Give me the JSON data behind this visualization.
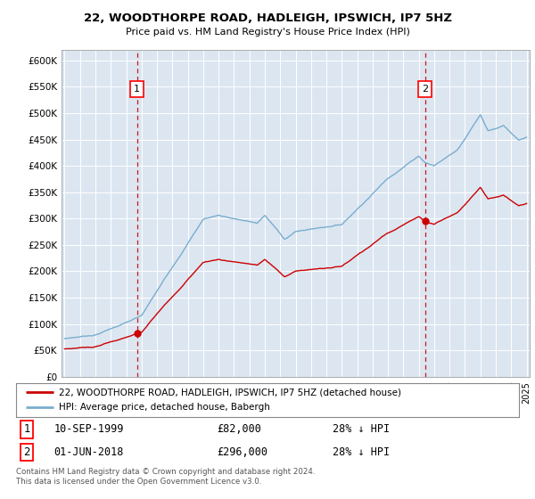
{
  "title": "22, WOODTHORPE ROAD, HADLEIGH, IPSWICH, IP7 5HZ",
  "subtitle": "Price paid vs. HM Land Registry's House Price Index (HPI)",
  "plot_bg_color": "#dce6f1",
  "ylim": [
    0,
    620000
  ],
  "yticks": [
    0,
    50000,
    100000,
    150000,
    200000,
    250000,
    300000,
    350000,
    400000,
    450000,
    500000,
    550000,
    600000
  ],
  "ytick_labels": [
    "£0",
    "£50K",
    "£100K",
    "£150K",
    "£200K",
    "£250K",
    "£300K",
    "£350K",
    "£400K",
    "£450K",
    "£500K",
    "£550K",
    "£600K"
  ],
  "sale1_date_year": 1999.7,
  "sale1_price": 82000,
  "sale2_date_year": 2018.4,
  "sale2_price": 296000,
  "legend_line1": "22, WOODTHORPE ROAD, HADLEIGH, IPSWICH, IP7 5HZ (detached house)",
  "legend_line2": "HPI: Average price, detached house, Babergh",
  "annotation1_label": "1",
  "annotation1_date": "10-SEP-1999",
  "annotation1_price": "£82,000",
  "annotation1_hpi": "28% ↓ HPI",
  "annotation2_label": "2",
  "annotation2_date": "01-JUN-2018",
  "annotation2_price": "£296,000",
  "annotation2_hpi": "28% ↓ HPI",
  "footer": "Contains HM Land Registry data © Crown copyright and database right 2024.\nThis data is licensed under the Open Government Licence v3.0.",
  "line_red_color": "#cc0000",
  "line_blue_color": "#7aadcf",
  "dashed_red_color": "#cc0000",
  "xlim_left": 1994.8,
  "xlim_right": 2025.2
}
